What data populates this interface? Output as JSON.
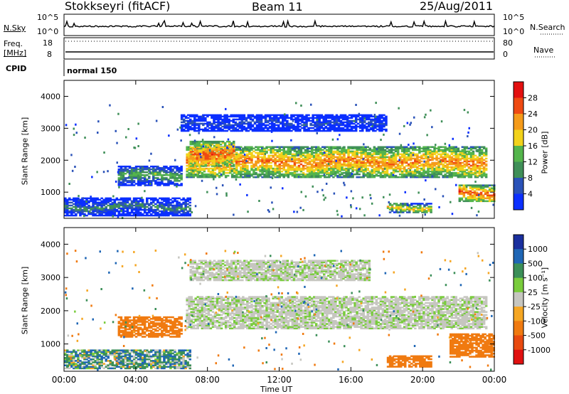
{
  "header": {
    "station": "Stokkseyri (fitACF)",
    "beam": "Beam 11",
    "date": "25/Aug/2011"
  },
  "top_panels": {
    "nsky_label": "N.Sky",
    "nsky_ticks": [
      "10^5",
      "10^0"
    ],
    "nsearch_label": "N.Search",
    "nsearch_ticks": [
      "10^5",
      "10^0"
    ],
    "freq_label": "Freq.",
    "freq_unit": "[MHz]",
    "freq_ticks": [
      "18",
      "8"
    ],
    "nave_label": "Nave",
    "nave_ticks": [
      "80",
      "0"
    ],
    "cpid_label": "CPID",
    "cpid_value": "normal 150"
  },
  "axes": {
    "xlabel": "Time UT",
    "x_ticks": [
      "00:00",
      "04:00",
      "08:00",
      "12:00",
      "16:00",
      "20:00",
      "00:00"
    ],
    "ylabel": "Slant Range [km]",
    "y_ticks": [
      "1000",
      "2000",
      "3000",
      "4000"
    ]
  },
  "colorbars": {
    "power": {
      "label": "Power [dB]",
      "ticks": [
        "4",
        "8",
        "12",
        "16",
        "20",
        "24",
        "28"
      ],
      "colors": [
        "#0b2fff",
        "#2a52b8",
        "#3f8f58",
        "#54b54c",
        "#f2d21b",
        "#f59b1a",
        "#ef4a12",
        "#e31010"
      ]
    },
    "velocity": {
      "label": "Velocity [m s⁻¹]",
      "ticks": [
        "1000",
        "500",
        "100",
        "25",
        "-25",
        "-100",
        "-500",
        "-1000"
      ],
      "colors": [
        "#1a2f9e",
        "#1f66b5",
        "#3b8f58",
        "#79cc3c",
        "#c6c6c0",
        "#f5a623",
        "#f07a10",
        "#e84a10",
        "#e01010"
      ]
    }
  },
  "chart_data": [
    {
      "type": "heatmap",
      "title": "Power",
      "x_range": [
        "00:00",
        "24:00"
      ],
      "ylim": [
        180,
        4500
      ],
      "ylabel": "Slant Range [km]",
      "xlabel": "Time UT",
      "units": "dB",
      "features": [
        {
          "t0": 6.8,
          "t1": 23.5,
          "r0": 1450,
          "r1": 2400,
          "value": 24
        },
        {
          "t0": 7.0,
          "t1": 9.5,
          "r0": 1800,
          "r1": 2600,
          "value": 26
        },
        {
          "t0": 3.0,
          "t1": 6.5,
          "r0": 1200,
          "r1": 1800,
          "value": 14
        },
        {
          "t0": 0.0,
          "t1": 7.0,
          "r0": 250,
          "r1": 800,
          "value": 10
        },
        {
          "t0": 18.0,
          "t1": 20.5,
          "r0": 350,
          "r1": 650,
          "value": 20
        },
        {
          "t0": 22.0,
          "t1": 24.0,
          "r0": 700,
          "r1": 1200,
          "value": 26
        },
        {
          "t0": 6.5,
          "t1": 18.0,
          "r0": 2900,
          "r1": 3400,
          "value": 6
        }
      ]
    },
    {
      "type": "heatmap",
      "title": "Velocity",
      "x_range": [
        "00:00",
        "24:00"
      ],
      "ylim": [
        180,
        4500
      ],
      "ylabel": "Slant Range [km]",
      "xlabel": "Time UT",
      "units": "m s-1",
      "features": [
        {
          "t0": 6.8,
          "t1": 23.5,
          "r0": 1450,
          "r1": 2400,
          "value": 0
        },
        {
          "t0": 7.0,
          "t1": 17.0,
          "r0": 2900,
          "r1": 3500,
          "value": 0
        },
        {
          "t0": 0.0,
          "t1": 7.0,
          "r0": 250,
          "r1": 800,
          "value": 60
        },
        {
          "t0": 18.0,
          "t1": 20.5,
          "r0": 300,
          "r1": 650,
          "value": -300
        },
        {
          "t0": 21.5,
          "t1": 24.0,
          "r0": 600,
          "r1": 1300,
          "value": -300
        },
        {
          "t0": 3.0,
          "t1": 6.5,
          "r0": 1200,
          "r1": 1800,
          "value": -200
        }
      ]
    }
  ]
}
